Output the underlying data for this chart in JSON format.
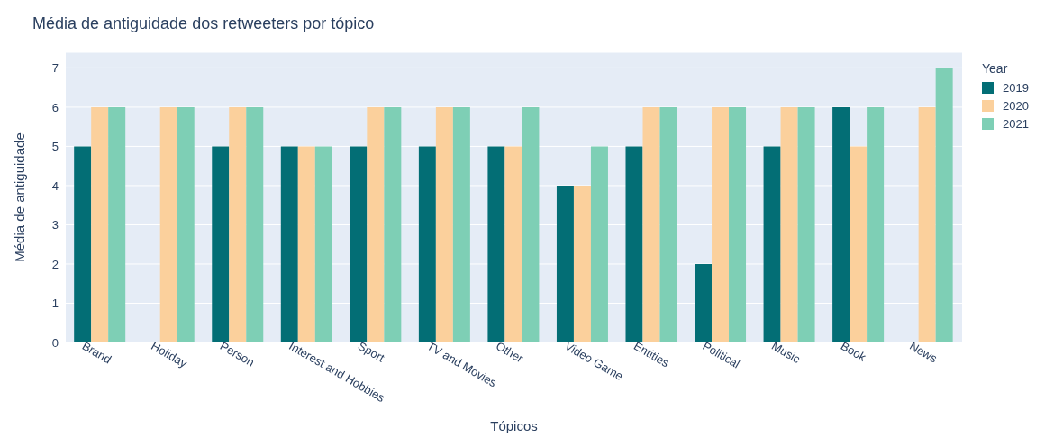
{
  "chart_data": {
    "type": "bar",
    "title": "Média de antiguidade dos retweeters por tópico",
    "xlabel": "Tópicos",
    "ylabel": "Média de antiguidade",
    "legend_title": "Year",
    "categories": [
      "Brand",
      "Holiday",
      "Person",
      "Interest and Hobbies",
      "Sport",
      "TV and Movies",
      "Other",
      "Video Game",
      "Entities",
      "Political",
      "Music",
      "Book",
      "News"
    ],
    "series": [
      {
        "name": "2019",
        "color": "#036e75",
        "values": [
          5,
          null,
          5,
          5,
          5,
          5,
          5,
          4,
          5,
          2,
          5,
          6,
          null
        ]
      },
      {
        "name": "2020",
        "color": "#fbd09c",
        "values": [
          6,
          6,
          6,
          5,
          6,
          6,
          5,
          4,
          6,
          6,
          6,
          5,
          6
        ]
      },
      {
        "name": "2021",
        "color": "#7ecfb5",
        "values": [
          6,
          6,
          6,
          5,
          6,
          6,
          6,
          5,
          6,
          6,
          6,
          6,
          7
        ]
      }
    ],
    "ylim": [
      0,
      7.4
    ],
    "yticks": [
      0,
      1,
      2,
      3,
      4,
      5,
      6,
      7
    ],
    "grid": "y",
    "legend": "top right"
  }
}
